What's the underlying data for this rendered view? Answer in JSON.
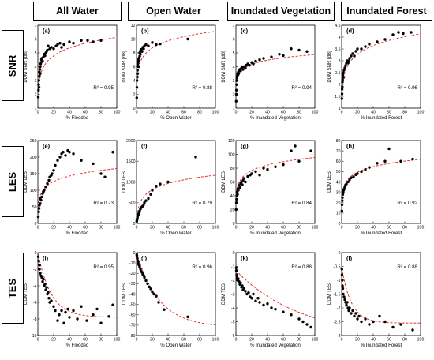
{
  "columns": [
    "All Water",
    "Open Water",
    "Inundated Vegetation",
    "Inundated Forest"
  ],
  "rows": [
    "SNR",
    "LES",
    "TES"
  ],
  "chart_data": [
    {
      "type": "scatter",
      "label": "(a)",
      "xlabel": "% Flooded",
      "ylabel": "DDM SNR [dB]",
      "r2": "R² = 0.95",
      "xlim": [
        0,
        100
      ],
      "ylim": [
        1,
        7
      ],
      "xticks": [
        0,
        20,
        40,
        60,
        80,
        100
      ],
      "yticks": [
        1,
        2,
        3,
        4,
        5,
        6,
        7
      ],
      "fit": {
        "model": "log",
        "a": 2.2,
        "b": 0.85,
        "c": 1
      },
      "x": [
        0.5,
        0.8,
        1,
        1.2,
        1.5,
        2,
        2,
        2.5,
        3,
        3,
        3.5,
        4,
        4.5,
        5,
        6,
        7,
        8,
        9,
        10,
        11,
        12,
        13,
        15,
        17,
        20,
        23,
        25,
        28,
        30,
        33,
        40,
        45,
        55,
        63,
        70,
        80
      ],
      "y": [
        1.8,
        2.3,
        2.7,
        3,
        2.5,
        3.3,
        3.6,
        3.8,
        4,
        3.5,
        4.2,
        4.3,
        4.5,
        4.6,
        4.4,
        4.7,
        4.9,
        4.8,
        5,
        5.1,
        5.2,
        5.5,
        5.3,
        5.4,
        5.3,
        5.5,
        5.6,
        5.7,
        5.4,
        5.6,
        5.8,
        5.7,
        5.9,
        5.9,
        5.8,
        5.9
      ]
    },
    {
      "type": "scatter",
      "label": "(b)",
      "xlabel": "% Open Water",
      "ylabel": "DDM SNR [dB]",
      "r2": "R² = 0.88",
      "xlim": [
        0,
        100
      ],
      "ylim": [
        0,
        12
      ],
      "xticks": [
        0,
        20,
        40,
        60,
        80,
        100
      ],
      "yticks": [
        0,
        2,
        4,
        6,
        8,
        10,
        12
      ],
      "fit": {
        "model": "log",
        "a": 4.2,
        "b": 1.5,
        "c": 0.3
      },
      "x": [
        0.3,
        0.5,
        0.6,
        0.8,
        1,
        1,
        1.2,
        1.5,
        1.5,
        2,
        2,
        2.5,
        3,
        3,
        4,
        4,
        5,
        5,
        6,
        7,
        8,
        9,
        10,
        12,
        15,
        20,
        25,
        30,
        65
      ],
      "y": [
        1.5,
        3,
        4,
        5,
        4.5,
        6,
        5.5,
        6.2,
        5,
        6.5,
        7,
        6.8,
        7.2,
        6,
        7.5,
        8,
        7.8,
        8.3,
        8.5,
        8.2,
        8.8,
        8.6,
        9,
        9.2,
        9,
        9.5,
        9.2,
        9.3,
        10
      ]
    },
    {
      "type": "scatter",
      "label": "(c)",
      "xlabel": "% Inundated Vegetation",
      "ylabel": "DDM SNR [dB]",
      "r2": "R² = 0.94",
      "xlim": [
        0,
        100
      ],
      "ylim": [
        1,
        7
      ],
      "xticks": [
        0,
        20,
        40,
        60,
        80,
        100
      ],
      "yticks": [
        1,
        2,
        3,
        4,
        5,
        6,
        7
      ],
      "fit": {
        "model": "log",
        "a": 2.8,
        "b": 0.45,
        "c": 1
      },
      "x": [
        0.3,
        0.5,
        0.6,
        0.8,
        1,
        1.2,
        1.5,
        2,
        2.5,
        3,
        3.5,
        4,
        5,
        6,
        7,
        8,
        9,
        10,
        12,
        13,
        15,
        17,
        20,
        22,
        25,
        30,
        35,
        45,
        55,
        60,
        70,
        80,
        90
      ],
      "y": [
        1.5,
        2,
        2.3,
        2.7,
        3,
        3.2,
        3.3,
        3.5,
        3.4,
        3.6,
        3.5,
        3.7,
        3.8,
        3.7,
        3.9,
        4,
        3.8,
        4,
        3.9,
        4.1,
        4.2,
        4.1,
        4.3,
        4.2,
        4.4,
        4.5,
        4.6,
        4.7,
        4.9,
        4.8,
        5.3,
        5.2,
        5.1
      ]
    },
    {
      "type": "scatter",
      "label": "(d)",
      "xlabel": "% Inundated Forest",
      "ylabel": "DDM SNR [dB]",
      "r2": "R² = 0.96",
      "xlim": [
        0,
        100
      ],
      "ylim": [
        1,
        4.5
      ],
      "xticks": [
        0,
        20,
        40,
        60,
        80,
        100
      ],
      "yticks": [
        1,
        1.5,
        2,
        2.5,
        3,
        3.5,
        4,
        4.5
      ],
      "fit": {
        "model": "log",
        "a": 1.6,
        "b": 0.55,
        "c": 1
      },
      "x": [
        0.3,
        0.5,
        0.6,
        0.8,
        1,
        1.2,
        1.5,
        2,
        2.5,
        3,
        4,
        5,
        6,
        7,
        8,
        9,
        10,
        12,
        14,
        16,
        18,
        20,
        25,
        30,
        35,
        45,
        55,
        65,
        72,
        78,
        88
      ],
      "y": [
        1.4,
        1.6,
        1.8,
        1.9,
        2.1,
        2.2,
        2.4,
        2.5,
        2.3,
        2.6,
        2.7,
        2.8,
        2.9,
        3,
        2.9,
        3,
        3.1,
        3.2,
        3.3,
        3.2,
        3.4,
        3.5,
        3.5,
        3.6,
        3.7,
        3.8,
        3.9,
        4.1,
        4.2,
        4.15,
        4.2
      ]
    },
    {
      "type": "scatter",
      "label": "(e)",
      "xlabel": "% Flooded",
      "ylabel": "DDM LES",
      "r2": "R² = 0.73",
      "xlim": [
        0,
        100
      ],
      "ylim": [
        0,
        250
      ],
      "xticks": [
        0,
        20,
        40,
        60,
        80,
        100
      ],
      "yticks": [
        0,
        50,
        100,
        150,
        200,
        250
      ],
      "fit": {
        "model": "log",
        "a": 50,
        "b": 25,
        "c": 1
      },
      "x": [
        0.5,
        1,
        1.5,
        2,
        3,
        3,
        4,
        5,
        6,
        7,
        8,
        10,
        12,
        14,
        15,
        17,
        18,
        20,
        22,
        25,
        28,
        30,
        32,
        35,
        38,
        40,
        45,
        55,
        70,
        80,
        85,
        95
      ],
      "y": [
        20,
        35,
        45,
        55,
        60,
        75,
        70,
        80,
        90,
        95,
        100,
        110,
        120,
        130,
        140,
        145,
        150,
        160,
        175,
        190,
        200,
        210,
        215,
        205,
        220,
        215,
        210,
        190,
        180,
        150,
        140,
        215
      ]
    },
    {
      "type": "scatter",
      "label": "(f)",
      "xlabel": "% Open Water",
      "ylabel": "DDM LES",
      "r2": "R² = 0.79",
      "xlim": [
        0,
        100
      ],
      "ylim": [
        0,
        2000
      ],
      "xticks": [
        0,
        20,
        40,
        60,
        80,
        100
      ],
      "yticks": [
        0,
        500,
        1000,
        1500,
        2000
      ],
      "fit": {
        "model": "log",
        "a": 150,
        "b": 220,
        "c": 0.3
      },
      "x": [
        0.3,
        0.5,
        0.8,
        1,
        1.2,
        1.5,
        2,
        2.5,
        3,
        3.5,
        4,
        5,
        6,
        7,
        8,
        9,
        10,
        12,
        15,
        18,
        20,
        25,
        30,
        40,
        75
      ],
      "y": [
        50,
        80,
        100,
        120,
        150,
        180,
        200,
        220,
        250,
        270,
        300,
        350,
        380,
        400,
        420,
        450,
        500,
        550,
        600,
        700,
        800,
        900,
        950,
        1000,
        1600
      ]
    },
    {
      "type": "scatter",
      "label": "(g)",
      "xlabel": "% Inundated Vegetation",
      "ylabel": "DDM LES",
      "r2": "R² = 0.84",
      "xlim": [
        0,
        100
      ],
      "ylim": [
        0,
        120
      ],
      "xticks": [
        0,
        20,
        40,
        60,
        80,
        100
      ],
      "yticks": [
        0,
        20,
        40,
        60,
        80,
        100,
        120
      ],
      "fit": {
        "model": "log",
        "a": 40,
        "b": 12,
        "c": 1
      },
      "x": [
        0.3,
        0.5,
        0.8,
        1,
        1.5,
        2,
        2.5,
        3,
        4,
        5,
        6,
        7,
        8,
        9,
        10,
        12,
        15,
        18,
        20,
        25,
        30,
        35,
        40,
        50,
        60,
        70,
        75,
        80,
        95
      ],
      "y": [
        20,
        30,
        35,
        40,
        45,
        42,
        50,
        48,
        55,
        52,
        58,
        60,
        56,
        62,
        65,
        60,
        68,
        70,
        72,
        75,
        70,
        80,
        78,
        82,
        85,
        105,
        112,
        90,
        105
      ]
    },
    {
      "type": "scatter",
      "label": "(h)",
      "xlabel": "% Inundated Forest",
      "ylabel": "DDM LES",
      "r2": "R² = 0.92",
      "xlim": [
        0,
        100
      ],
      "ylim": [
        0,
        80
      ],
      "xticks": [
        0,
        20,
        40,
        60,
        80,
        100
      ],
      "yticks": [
        0,
        10,
        20,
        30,
        40,
        50,
        60,
        70,
        80
      ],
      "fit": {
        "model": "log",
        "a": 25,
        "b": 8,
        "c": 1
      },
      "x": [
        0.3,
        0.5,
        0.8,
        1,
        1.5,
        2,
        2.5,
        3,
        4,
        5,
        6,
        8,
        10,
        12,
        15,
        18,
        20,
        25,
        30,
        35,
        45,
        55,
        60,
        75,
        90
      ],
      "y": [
        12,
        18,
        22,
        25,
        28,
        30,
        32,
        33,
        35,
        37,
        38,
        40,
        42,
        44,
        45,
        47,
        48,
        50,
        52,
        54,
        58,
        60,
        72,
        60,
        62
      ]
    },
    {
      "type": "scatter",
      "label": "(i)",
      "xlabel": "% Flooded",
      "ylabel": "DDM TES",
      "r2": "R² = 0.95",
      "xlim": [
        0,
        100
      ],
      "ylim": [
        -10,
        0
      ],
      "xticks": [
        0,
        20,
        40,
        60,
        80,
        100
      ],
      "yticks": [
        -10,
        -8,
        -6,
        -4,
        -2,
        0
      ],
      "fit": {
        "model": "exp",
        "a": -7.8,
        "b": 7.8,
        "k": 0.06
      },
      "x": [
        0.5,
        1,
        2,
        2,
        3,
        4,
        5,
        6,
        7,
        8,
        9,
        10,
        11,
        12,
        13,
        14,
        15,
        17,
        20,
        22,
        25,
        27,
        30,
        33,
        35,
        38,
        40,
        45,
        50,
        55,
        62,
        70,
        75,
        80,
        90,
        95
      ],
      "y": [
        -0.5,
        -1,
        -1.5,
        -2,
        -2.5,
        -2.8,
        -3,
        -3.5,
        -3.2,
        -4,
        -3.8,
        -4.5,
        -4.2,
        -5,
        -4.8,
        -5.5,
        -6,
        -5.8,
        -6.5,
        -7,
        -8.2,
        -7.5,
        -7,
        -8.5,
        -7.2,
        -6.8,
        -7.8,
        -7,
        -8,
        -6.5,
        -8.2,
        -7.5,
        -6.8,
        -8.5,
        -7.7,
        -6.3
      ]
    },
    {
      "type": "scatter",
      "label": "(j)",
      "xlabel": "% Open Water",
      "ylabel": "DDM TES",
      "r2": "R² = 0.96",
      "xlim": [
        0,
        100
      ],
      "ylim": [
        -80,
        0
      ],
      "xticks": [
        0,
        20,
        40,
        60,
        80,
        100
      ],
      "yticks": [
        -80,
        -70,
        -60,
        -50,
        -40,
        -30,
        -20,
        -10,
        0
      ],
      "fit": {
        "model": "exp",
        "a": -72,
        "b": 72,
        "k": 0.035
      },
      "x": [
        0.3,
        0.5,
        0.8,
        1,
        1.5,
        2,
        2.5,
        3,
        4,
        5,
        6,
        7,
        8,
        9,
        10,
        12,
        14,
        16,
        18,
        20,
        22,
        25,
        28,
        35,
        65
      ],
      "y": [
        -2,
        -3,
        -5,
        -6,
        -8,
        -9,
        -11,
        -12,
        -14,
        -16,
        -18,
        -19,
        -21,
        -22,
        -24,
        -27,
        -30,
        -33,
        -35,
        -38,
        -40,
        -42,
        -48,
        -55,
        -62
      ]
    },
    {
      "type": "scatter",
      "label": "(k)",
      "xlabel": "% Inundated Vegetation",
      "ylabel": "DDM TES",
      "r2": "R² = 0.88",
      "xlim": [
        0,
        100
      ],
      "ylim": [
        -6,
        0
      ],
      "xticks": [
        0,
        20,
        40,
        60,
        80,
        100
      ],
      "yticks": [
        -6,
        -5,
        -4,
        -3,
        -2,
        -1,
        0
      ],
      "fit": {
        "model": "exp",
        "a": -6.2,
        "b": 4.9,
        "k": 0.012
      },
      "x": [
        0.3,
        0.5,
        1,
        1.5,
        2,
        3,
        4,
        5,
        6,
        7,
        8,
        9,
        10,
        12,
        14,
        16,
        18,
        20,
        22,
        25,
        28,
        30,
        35,
        40,
        45,
        50,
        60,
        70,
        80,
        85,
        90,
        95
      ],
      "y": [
        -1.1,
        -1.3,
        -1.6,
        -1.8,
        -2,
        -1.9,
        -2.1,
        -2.3,
        -2.2,
        -2.5,
        -2.4,
        -2.7,
        -2.6,
        -2.8,
        -3,
        -2.9,
        -3.2,
        -3.3,
        -3,
        -3.5,
        -3.3,
        -3.6,
        -3.8,
        -3.7,
        -4,
        -4.1,
        -4.3,
        -4.5,
        -4.8,
        -5,
        -5.2,
        -5.4
      ]
    },
    {
      "type": "scatter",
      "label": "(l)",
      "xlabel": "% Inundated Forest",
      "ylabel": "DDM TES",
      "r2": "R² = 0.88",
      "xlim": [
        0,
        100
      ],
      "ylim": [
        -3,
        0
      ],
      "xticks": [
        0,
        20,
        40,
        60,
        80,
        100
      ],
      "yticks": [
        -3,
        -2.5,
        -2,
        -1.5,
        -1,
        -0.5,
        0
      ],
      "fit": {
        "model": "exp",
        "a": -2.55,
        "b": 2.0,
        "k": 0.08
      },
      "x": [
        0.3,
        0.5,
        0.8,
        1,
        1.5,
        2,
        3,
        4,
        5,
        6,
        7,
        8,
        9,
        10,
        12,
        14,
        16,
        18,
        20,
        22,
        25,
        30,
        35,
        40,
        48,
        55,
        65,
        75,
        90
      ],
      "y": [
        -0.6,
        -0.8,
        -1,
        -1.2,
        -1.3,
        -1.5,
        -1.6,
        -1.7,
        -1.8,
        -1.9,
        -1.8,
        -2,
        -2.1,
        -2,
        -2.2,
        -2.1,
        -2.3,
        -2.2,
        -2.4,
        -2.3,
        -2.5,
        -2.4,
        -2.6,
        -2.5,
        -2.3,
        -2.5,
        -2.7,
        -2.6,
        -2.8
      ]
    }
  ]
}
